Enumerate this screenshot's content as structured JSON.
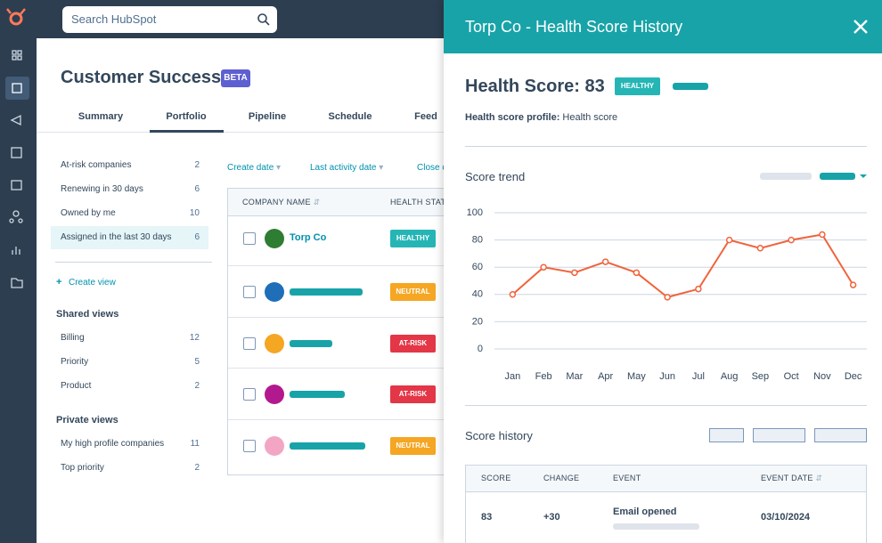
{
  "search": {
    "placeholder": "Search HubSpot"
  },
  "page": {
    "title": "Customer Success",
    "badge": "BETA",
    "tabs": [
      "Summary",
      "Portfolio",
      "Pipeline",
      "Schedule",
      "Feed"
    ],
    "active_tab": 1
  },
  "views": {
    "items": [
      {
        "label": "At-risk companies",
        "count": 2
      },
      {
        "label": "Renewing in 30 days",
        "count": 6
      },
      {
        "label": "Owned by me",
        "count": 10
      },
      {
        "label": "Assigned in the last 30 days",
        "count": 6
      }
    ],
    "selected": 3,
    "create": "Create view",
    "shared_title": "Shared views",
    "shared": [
      {
        "label": "Billing",
        "count": 12
      },
      {
        "label": "Priority",
        "count": 5
      },
      {
        "label": "Product",
        "count": 2
      }
    ],
    "private_title": "Private views",
    "private": [
      {
        "label": "My high profile companies",
        "count": 11
      },
      {
        "label": "Top priority",
        "count": 2
      }
    ]
  },
  "filters": [
    "Create date",
    "Last activity date",
    "Close date"
  ],
  "table": {
    "columns": [
      "COMPANY NAME",
      "HEALTH STATUS"
    ],
    "rows": [
      {
        "company": "Torp Co",
        "status": "HEALTHY",
        "color": "#26b5b5",
        "avatar": "#2e7d32"
      },
      {
        "status": "NEUTRAL",
        "color": "#f5a623",
        "avatar": "#1e6fb8"
      },
      {
        "status": "AT-RISK",
        "color": "#e33646",
        "avatar": "#f5a623"
      },
      {
        "status": "AT-RISK",
        "color": "#e33646",
        "avatar": "#b3198f"
      },
      {
        "status": "NEUTRAL",
        "color": "#f5a623",
        "avatar": "#f3a6c4"
      }
    ]
  },
  "panel": {
    "title": "Torp Co - Health Score History",
    "score": "Health Score: 83",
    "badge": "HEALTHY",
    "profile_label": "Health score profile:",
    "profile_value": "Health score",
    "history_title": "Score history",
    "history": {
      "columns": [
        "SCORE",
        "CHANGE",
        "EVENT",
        "EVENT DATE"
      ],
      "rows": [
        [
          "83",
          "+30",
          "Email opened",
          "03/10/2024"
        ]
      ]
    }
  },
  "chart_data": {
    "type": "line",
    "title": "Score trend",
    "categories": [
      "Jan",
      "Feb",
      "Mar",
      "Apr",
      "May",
      "Jun",
      "Jul",
      "Aug",
      "Sep",
      "Oct",
      "Nov",
      "Dec"
    ],
    "series": [
      {
        "color": "#f0643c",
        "values": [
          40,
          60,
          56,
          64,
          56,
          38,
          44,
          80,
          74,
          80,
          84,
          47
        ]
      }
    ],
    "ylim": [
      0,
      100
    ],
    "yticks": [
      0,
      20,
      40,
      60,
      80,
      100
    ],
    "grid": true
  }
}
